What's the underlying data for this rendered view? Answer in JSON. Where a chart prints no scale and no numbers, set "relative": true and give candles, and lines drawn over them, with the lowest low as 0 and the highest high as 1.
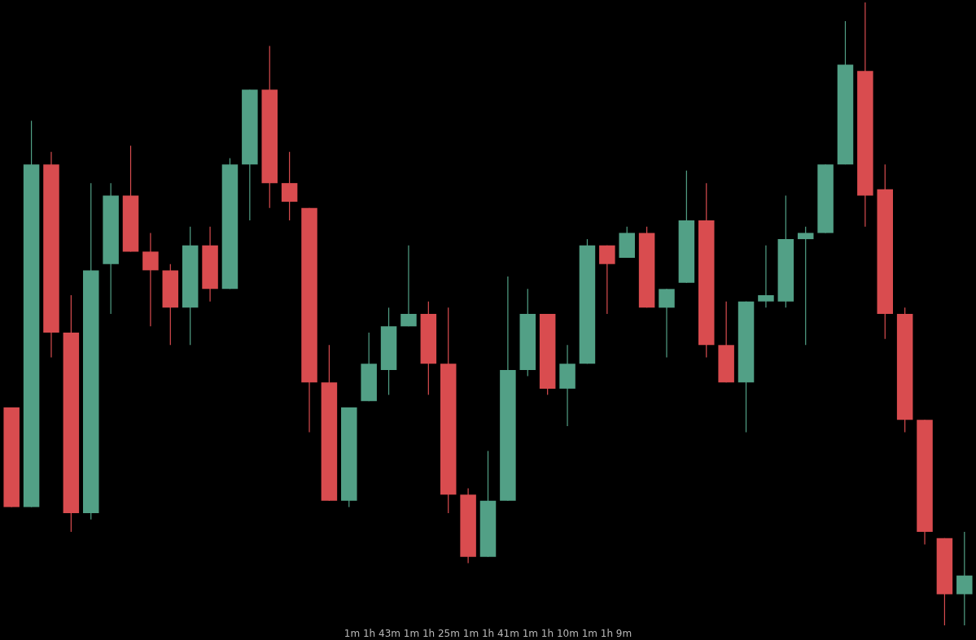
{
  "chart_data": {
    "type": "candlestick",
    "relative": true,
    "categories": [
      null,
      null,
      null,
      null,
      null,
      null,
      null,
      null,
      null,
      null,
      null,
      null,
      null,
      null,
      null,
      null,
      null,
      null,
      null,
      null,
      null,
      null,
      null,
      null,
      null,
      null,
      null,
      null,
      null,
      null,
      null,
      null,
      null,
      null,
      null,
      null,
      null,
      null,
      null,
      null,
      null,
      null,
      null,
      null,
      null,
      null,
      null,
      null,
      null
    ],
    "ohlc": [
      [
        0.35,
        0.35,
        0.19,
        0.19
      ],
      [
        0.19,
        0.81,
        0.19,
        0.74
      ],
      [
        0.74,
        0.76,
        0.43,
        0.47
      ],
      [
        0.47,
        0.53,
        0.15,
        0.18
      ],
      [
        0.18,
        0.71,
        0.17,
        0.57
      ],
      [
        0.58,
        0.71,
        0.5,
        0.69
      ],
      [
        0.69,
        0.77,
        0.6,
        0.6
      ],
      [
        0.6,
        0.63,
        0.48,
        0.57
      ],
      [
        0.57,
        0.58,
        0.45,
        0.51
      ],
      [
        0.51,
        0.64,
        0.45,
        0.61
      ],
      [
        0.61,
        0.64,
        0.52,
        0.54
      ],
      [
        0.54,
        0.75,
        0.54,
        0.74
      ],
      [
        0.74,
        0.86,
        0.65,
        0.86
      ],
      [
        0.86,
        0.93,
        0.67,
        0.71
      ],
      [
        0.71,
        0.76,
        0.65,
        0.68
      ],
      [
        0.67,
        0.67,
        0.31,
        0.39
      ],
      [
        0.39,
        0.45,
        0.2,
        0.2
      ],
      [
        0.2,
        0.35,
        0.19,
        0.35
      ],
      [
        0.36,
        0.47,
        0.36,
        0.42
      ],
      [
        0.41,
        0.51,
        0.37,
        0.48
      ],
      [
        0.48,
        0.61,
        0.48,
        0.5
      ],
      [
        0.5,
        0.52,
        0.37,
        0.42
      ],
      [
        0.42,
        0.51,
        0.18,
        0.21
      ],
      [
        0.21,
        0.22,
        0.1,
        0.11
      ],
      [
        0.11,
        0.28,
        0.11,
        0.2
      ],
      [
        0.2,
        0.56,
        0.2,
        0.41
      ],
      [
        0.41,
        0.54,
        0.4,
        0.5
      ],
      [
        0.5,
        0.5,
        0.37,
        0.38
      ],
      [
        0.38,
        0.45,
        0.32,
        0.42
      ],
      [
        0.42,
        0.62,
        0.42,
        0.61
      ],
      [
        0.61,
        0.61,
        0.5,
        0.58
      ],
      [
        0.59,
        0.64,
        0.59,
        0.63
      ],
      [
        0.63,
        0.64,
        0.51,
        0.51
      ],
      [
        0.51,
        0.54,
        0.43,
        0.54
      ],
      [
        0.55,
        0.73,
        0.55,
        0.65
      ],
      [
        0.65,
        0.71,
        0.43,
        0.45
      ],
      [
        0.45,
        0.52,
        0.39,
        0.39
      ],
      [
        0.39,
        0.52,
        0.31,
        0.52
      ],
      [
        0.52,
        0.61,
        0.51,
        0.53
      ],
      [
        0.52,
        0.69,
        0.51,
        0.62
      ],
      [
        0.62,
        0.64,
        0.45,
        0.63
      ],
      [
        0.63,
        0.74,
        0.63,
        0.74
      ],
      [
        0.74,
        0.97,
        0.74,
        0.9
      ],
      [
        0.89,
        1.0,
        0.64,
        0.69
      ],
      [
        0.7,
        0.74,
        0.46,
        0.5
      ],
      [
        0.5,
        0.51,
        0.31,
        0.33
      ],
      [
        0.33,
        0.33,
        0.13,
        0.15
      ],
      [
        0.14,
        0.14,
        0,
        0.05
      ],
      [
        0.05,
        0.15,
        0,
        0.08
      ]
    ],
    "colors": [
      "#d94c4f",
      "#52a086",
      "#d94c4f",
      "#d94c4f",
      "#52a086",
      "#52a086",
      "#d94c4f",
      "#d94c4f",
      "#d94c4f",
      "#52a086",
      "#d94c4f",
      "#52a086",
      "#52a086",
      "#d94c4f",
      "#d94c4f",
      "#d94c4f",
      "#d94c4f",
      "#52a086",
      "#52a086",
      "#52a086",
      "#52a086",
      "#d94c4f",
      "#d94c4f",
      "#d94c4f",
      "#52a086",
      "#52a086",
      "#52a086",
      "#d94c4f",
      "#52a086",
      "#52a086",
      "#d94c4f",
      "#52a086",
      "#d94c4f",
      "#52a086",
      "#52a086",
      "#d94c4f",
      "#d94c4f",
      "#52a086",
      "#52a086",
      "#52a086",
      "#52a086",
      "#52a086",
      "#52a086",
      "#d94c4f",
      "#d94c4f",
      "#d94c4f",
      "#d94c4f",
      "#d94c4f",
      "#52a086"
    ],
    "annotations": [
      "1m    1h 43m",
      "1m    1h 25m",
      "1m    1h 41m",
      "1m    1h 10m",
      "1m    1h 9m"
    ]
  }
}
